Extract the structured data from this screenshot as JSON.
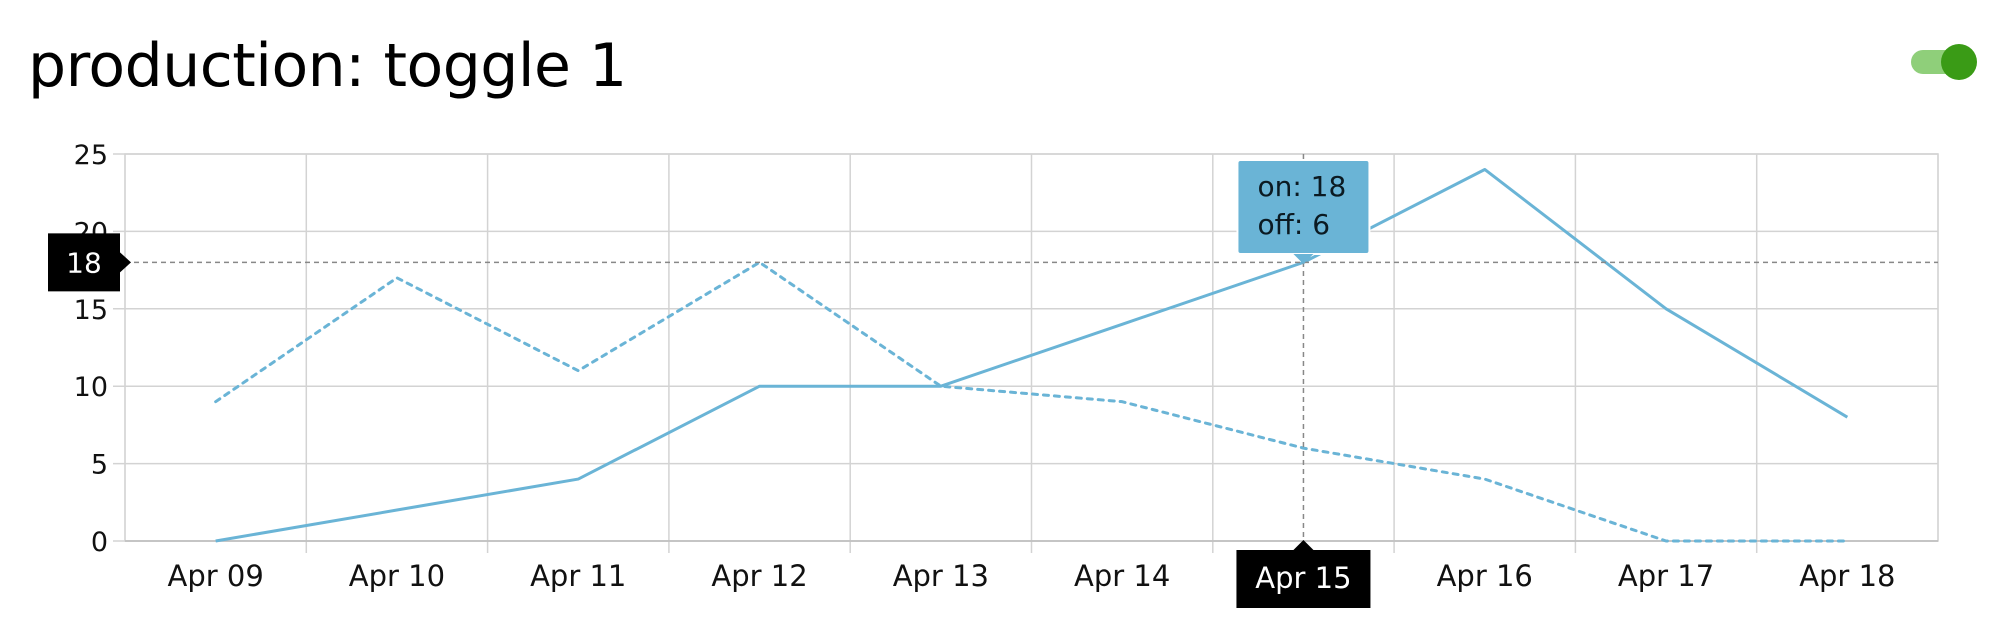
{
  "header": {
    "title": "production: toggle 1",
    "toggle_state": "on",
    "toggle_color": "#3a9b16"
  },
  "chart_data": {
    "type": "line",
    "categories": [
      "Apr 09",
      "Apr 10",
      "Apr 11",
      "Apr 12",
      "Apr 13",
      "Apr 14",
      "Apr 15",
      "Apr 16",
      "Apr 17",
      "Apr 18"
    ],
    "series": [
      {
        "name": "on",
        "style": "solid",
        "color": "#6ab4d6",
        "values": [
          0,
          2,
          4,
          10,
          10,
          14,
          18,
          24,
          15,
          8
        ]
      },
      {
        "name": "off",
        "style": "dotted",
        "color": "#6ab4d6",
        "values": [
          9,
          17,
          11,
          18,
          10,
          9,
          6,
          4,
          0,
          0
        ]
      }
    ],
    "yticks": [
      0,
      5,
      10,
      15,
      20,
      25
    ],
    "ylim": [
      0,
      25
    ],
    "grid": true,
    "crosshair": {
      "category": "Apr 15",
      "y_value": 18,
      "y_label": "18",
      "x_label": "Apr 15"
    },
    "tooltip": {
      "lines": [
        "on: 18",
        "off: 6"
      ],
      "color": "#6ab4d6"
    }
  }
}
